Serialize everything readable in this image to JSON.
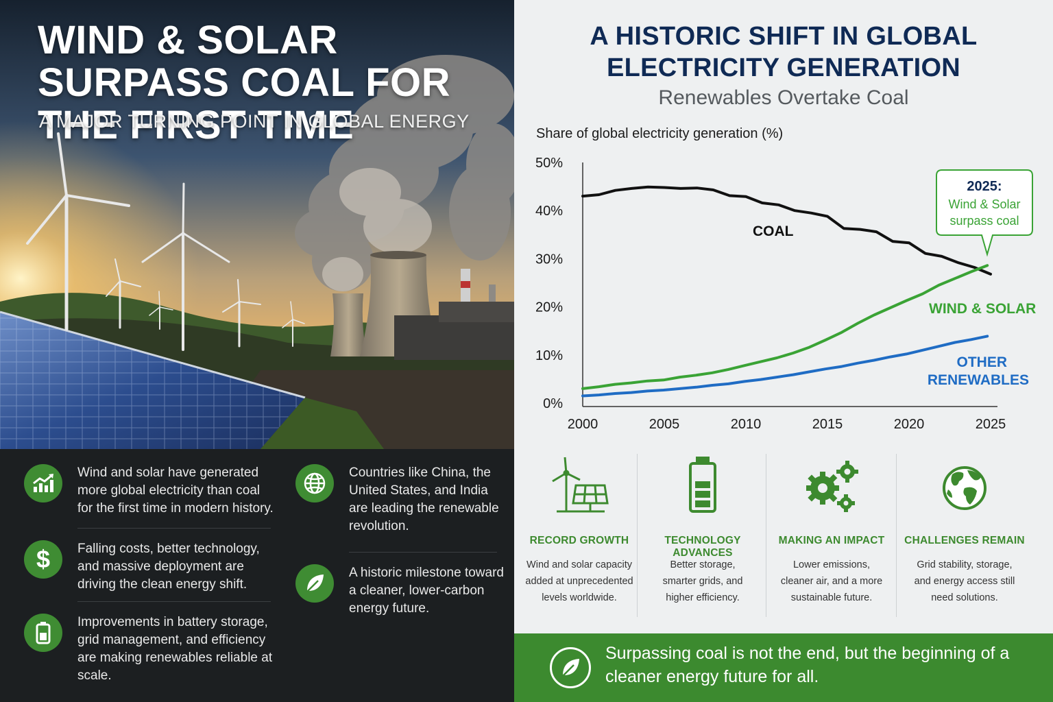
{
  "hero": {
    "title": "Wind & Solar Surpass Coal for the First Time",
    "subtitle": "A Major Turning Point in Global Energy"
  },
  "facts": [
    {
      "icon": "growth-chart-icon",
      "text": "Wind and solar have generated more global electricity than coal for the first time in modern history."
    },
    {
      "icon": "dollar-icon",
      "text": "Falling costs, better technology, and massive deployment are driving the clean energy shift."
    },
    {
      "icon": "battery-icon",
      "text": "Improvements in battery storage, grid management, and efficiency are making renewables reliable at scale."
    },
    {
      "icon": "globe-icon",
      "text": "Countries like China, the United States, and India are leading the renewable revolution."
    },
    {
      "icon": "leaf-icon",
      "text": "A historic milestone toward a cleaner, lower-carbon energy future."
    }
  ],
  "right": {
    "title": "A Historic Shift in Global Electricity Generation",
    "subtitle": "Renewables Overtake Coal"
  },
  "chart_data": {
    "type": "line",
    "title": "Share of global electricity generation (%)",
    "xlabel": "",
    "ylabel": "",
    "x": [
      2000,
      2001,
      2002,
      2003,
      2004,
      2005,
      2006,
      2007,
      2008,
      2009,
      2010,
      2011,
      2012,
      2013,
      2014,
      2015,
      2016,
      2017,
      2018,
      2019,
      2020,
      2021,
      2022,
      2023,
      2024,
      2025
    ],
    "xticks": [
      "2000",
      "2005",
      "2010",
      "2015",
      "2020",
      "2025"
    ],
    "yticks": [
      "0%",
      "10%",
      "20%",
      "30%",
      "40%",
      "50%"
    ],
    "xlim": [
      2000,
      2025
    ],
    "ylim": [
      0,
      50
    ],
    "grid": false,
    "series": [
      {
        "name": "COAL",
        "color": "#111111",
        "x_end": 2025,
        "values": [
          43,
          43.3,
          44.2,
          44.6,
          44.9,
          44.8,
          44.6,
          44.7,
          44.3,
          43.1,
          42.9,
          41.6,
          41.2,
          40,
          39.5,
          38.8,
          36.3,
          36.1,
          35.6,
          33.6,
          33.3,
          31.1,
          30.5,
          29.2,
          28.2,
          26.8
        ]
      },
      {
        "name": "WIND & SOLAR",
        "color": "#3aa335",
        "x_end": 2024.8,
        "values": [
          3,
          3.4,
          3.9,
          4.2,
          4.6,
          4.8,
          5.4,
          5.8,
          6.3,
          7,
          7.8,
          8.6,
          9.4,
          10.4,
          11.6,
          13.1,
          14.7,
          16.6,
          18.3,
          19.8,
          21.3,
          22.7,
          24.5,
          25.9,
          27.3,
          28.6
        ]
      },
      {
        "name": "OTHER RENEWABLES",
        "color": "#1f6cc4",
        "x_end": 2024.8,
        "values": [
          1.5,
          1.7,
          2,
          2.2,
          2.5,
          2.7,
          3,
          3.3,
          3.7,
          4,
          4.5,
          4.9,
          5.4,
          5.9,
          6.5,
          7.1,
          7.6,
          8.3,
          8.9,
          9.6,
          10.2,
          11,
          11.8,
          12.6,
          13.2,
          13.9
        ]
      }
    ],
    "annotation": {
      "year": "2025:",
      "text": "Wind & Solar surpass coal",
      "color": "#3aa335"
    }
  },
  "features": [
    {
      "icon": "wind-solar-icon",
      "title": "Record Growth",
      "body": "Wind and solar capacity added at unprecedented levels worldwide."
    },
    {
      "icon": "battery-icon",
      "title": "Technology Advances",
      "body": "Better storage, smarter grids, and higher efficiency."
    },
    {
      "icon": "gears-icon",
      "title": "Making an Impact",
      "body": "Lower emissions, cleaner air, and a more sustainable future."
    },
    {
      "icon": "globe-icon",
      "title": "Challenges Remain",
      "body": "Grid stability, storage, and energy access still need solutions."
    }
  ],
  "footer": {
    "icon": "leaf-icon",
    "text": "Surpassing coal is not the end, but the beginning of a cleaner energy future for all."
  },
  "colors": {
    "accent_green": "#3c8a2f",
    "navy": "#0f2a55",
    "coal": "#111111",
    "wind_solar": "#3aa335",
    "other": "#1f6cc4"
  }
}
